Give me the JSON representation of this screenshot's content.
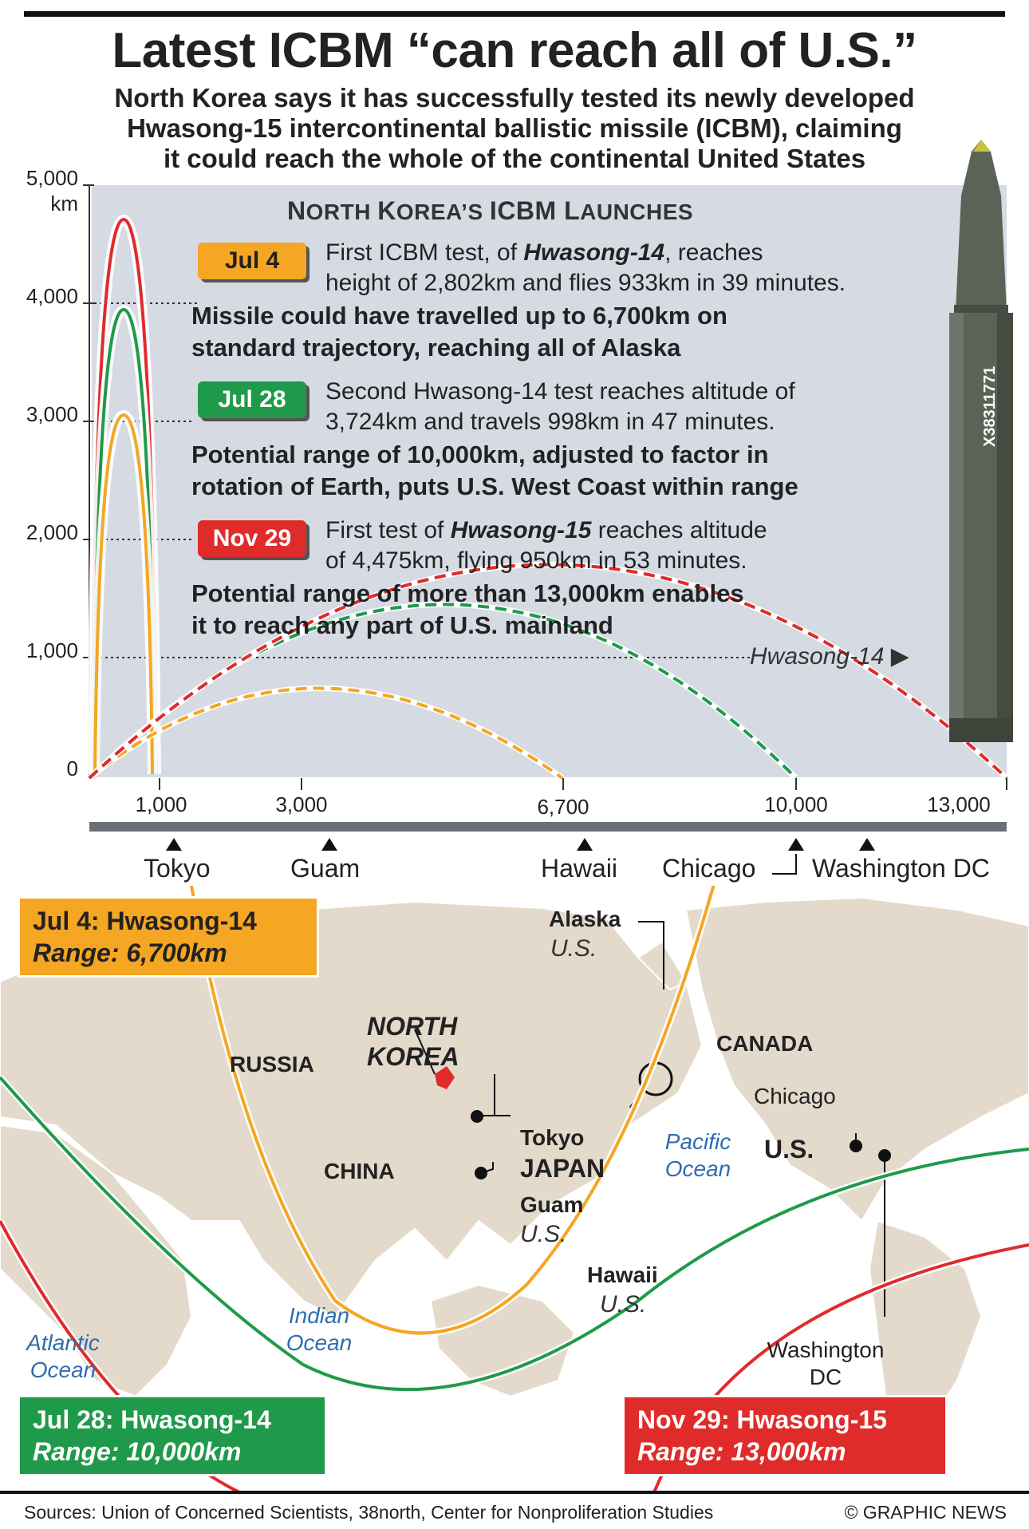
{
  "header": {
    "title": "Latest ICBM “can reach all of U.S.”",
    "subtitle_lines": [
      "North Korea says it has successfully tested its newly developed",
      "Hwasong-15 intercontinental ballistic missile (ICBM), claiming",
      "it could reach the whole of the continental United States"
    ]
  },
  "chart": {
    "panel_title_a": "N",
    "panel_title_b": "ORTH ",
    "panel_title_c": "K",
    "panel_title_d": "OREA’S ",
    "panel_title_e": "ICBM L",
    "panel_title_f": "AUNCHES",
    "y_unit": "km",
    "y_ticks": [
      "5,000",
      "4,000",
      "3,000",
      "2,000",
      "1,000",
      "0"
    ],
    "x_ticks": [
      "1,000",
      "3,000",
      "6,700",
      "10,000",
      "13,000"
    ],
    "missile_label": "Hwasong-14",
    "missile_serial": "Х38311771",
    "cities": [
      "Tokyo",
      "Guam",
      "Hawaii",
      "Chicago",
      "Washington DC"
    ]
  },
  "launches": [
    {
      "tag": "Jul 4",
      "color": "#f5a623",
      "line1_pre": "First ICBM test, of ",
      "line1_em": "Hwasong-14",
      "line1_post": ", reaches",
      "line2": "height of 2,802km and flies 933km in 39 minutes.",
      "bold1": "Missile could have travelled up to 6,700km on",
      "bold2": "standard trajectory, reaching all of Alaska"
    },
    {
      "tag": "Jul 28",
      "color": "#1f9a4a",
      "line1_pre": "Second Hwasong-14 test reaches altitude of",
      "line1_em": "",
      "line1_post": "",
      "line2": "3,724km and travels 998km in 47 minutes.",
      "bold1": "Potential range of 10,000km, adjusted to factor in",
      "bold2": "rotation of Earth, puts U.S. West Coast within range"
    },
    {
      "tag": "Nov 29",
      "color": "#e02b2b",
      "line1_pre": "First test of ",
      "line1_em": "Hwasong-15",
      "line1_post": " reaches altitude",
      "line2": "of 4,475km, flying 950km in 53 minutes.",
      "bold1": "Potential range of more than 13,000km enables",
      "bold2": "it to reach any part of U.S. mainland"
    }
  ],
  "chart_data": {
    "type": "line",
    "title": "NORTH KOREA’S ICBM LAUNCHES",
    "ylabel": "km",
    "ylim": [
      0,
      5000
    ],
    "xlim": [
      0,
      13300
    ],
    "series": [
      {
        "name": "Jul 4",
        "apogee_km": 2802,
        "range_km": 933,
        "potential_range_km": 6700
      },
      {
        "name": "Jul 28",
        "apogee_km": 3724,
        "range_km": 998,
        "potential_range_km": 10000
      },
      {
        "name": "Nov 29",
        "apogee_km": 4475,
        "range_km": 950,
        "potential_range_km": 13000
      }
    ],
    "city_distances_km": [
      {
        "name": "Tokyo",
        "km": 1300
      },
      {
        "name": "Guam",
        "km": 3400
      },
      {
        "name": "Hawaii",
        "km": 7200
      },
      {
        "name": "Chicago",
        "km": 10000
      },
      {
        "name": "Washington DC",
        "km": 11000
      }
    ]
  },
  "map": {
    "box1_line1": "Jul 4: Hwasong-14",
    "box1_line2": "Range: 6,700km",
    "box2_line1": "Jul 28: Hwasong-14",
    "box2_line2": "Range: 10,000km",
    "box3_line1": "Nov 29: Hwasong-15",
    "box3_line2": "Range: 13,000km",
    "russia": "RUSSIA",
    "china": "CHINA",
    "nk1": "NORTH",
    "nk2": "KOREA",
    "tokyo": "Tokyo",
    "japan": "JAPAN",
    "guam": "Guam",
    "us_abbr": "U.S.",
    "alaska": "Alaska",
    "canada": "CANADA",
    "chicago": "Chicago",
    "us_main": "U.S.",
    "hawaii": "Hawaii",
    "washington1": "Washington",
    "washington2": "DC",
    "pacific1": "Pacific",
    "pacific2": "Ocean",
    "indian1": "Indian",
    "indian2": "Ocean",
    "atlantic1": "Atlantic",
    "atlantic2": "Ocean"
  },
  "footer": {
    "sources": "Sources: Union of Concerned Scientists, 38north, Center for Nonproliferation Studies",
    "copyright": "© GRAPHIC NEWS"
  }
}
